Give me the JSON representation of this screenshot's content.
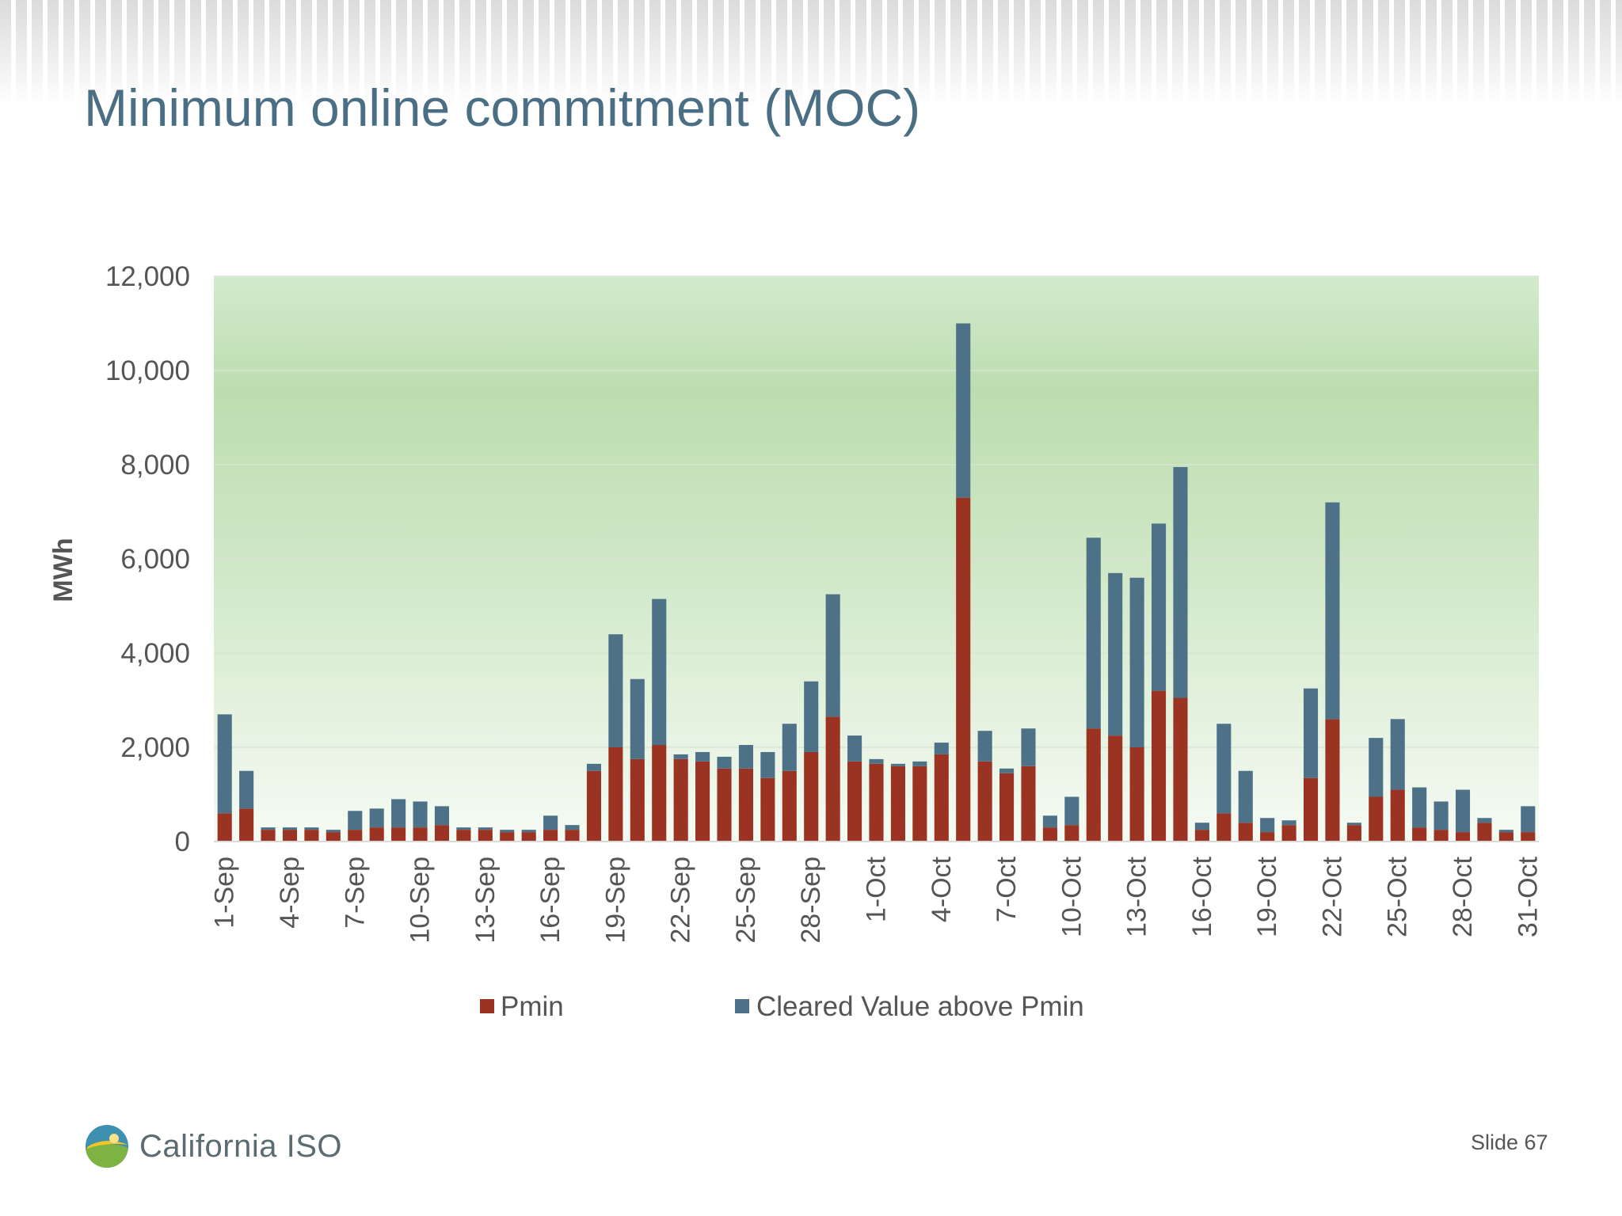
{
  "slide": {
    "title": "Minimum online commitment (MOC)",
    "slide_number": "Slide 67",
    "logo_text": "California ISO"
  },
  "chart_data": {
    "type": "bar",
    "stacked": true,
    "ylabel": "MWh",
    "xlabel": "",
    "ylim": [
      0,
      12000
    ],
    "yticks": [
      0,
      2000,
      4000,
      6000,
      8000,
      10000,
      12000
    ],
    "ytick_labels": [
      "0",
      "2,000",
      "4,000",
      "6,000",
      "8,000",
      "10,000",
      "12,000"
    ],
    "grid": true,
    "legend_position": "bottom",
    "categories": [
      "1-Sep",
      "2-Sep",
      "3-Sep",
      "4-Sep",
      "5-Sep",
      "6-Sep",
      "7-Sep",
      "8-Sep",
      "9-Sep",
      "10-Sep",
      "11-Sep",
      "12-Sep",
      "13-Sep",
      "14-Sep",
      "15-Sep",
      "16-Sep",
      "17-Sep",
      "18-Sep",
      "19-Sep",
      "20-Sep",
      "21-Sep",
      "22-Sep",
      "23-Sep",
      "24-Sep",
      "25-Sep",
      "26-Sep",
      "27-Sep",
      "28-Sep",
      "29-Sep",
      "30-Sep",
      "1-Oct",
      "2-Oct",
      "3-Oct",
      "4-Oct",
      "5-Oct",
      "6-Oct",
      "7-Oct",
      "8-Oct",
      "9-Oct",
      "10-Oct",
      "11-Oct",
      "12-Oct",
      "13-Oct",
      "14-Oct",
      "15-Oct",
      "16-Oct",
      "17-Oct",
      "18-Oct",
      "19-Oct",
      "20-Oct",
      "21-Oct",
      "22-Oct",
      "23-Oct",
      "24-Oct",
      "25-Oct",
      "26-Oct",
      "27-Oct",
      "28-Oct",
      "29-Oct",
      "30-Oct",
      "31-Oct"
    ],
    "shown_tick_labels": [
      "1-Sep",
      "4-Sep",
      "7-Sep",
      "10-Sep",
      "13-Sep",
      "16-Sep",
      "19-Sep",
      "22-Sep",
      "25-Sep",
      "28-Sep",
      "1-Oct",
      "4-Oct",
      "7-Oct",
      "10-Oct",
      "13-Oct",
      "16-Oct",
      "19-Oct",
      "22-Oct",
      "25-Oct",
      "28-Oct",
      "31-Oct"
    ],
    "series": [
      {
        "name": "Pmin",
        "color": "#9a3322",
        "values": [
          600,
          700,
          250,
          250,
          250,
          200,
          250,
          300,
          300,
          300,
          350,
          250,
          250,
          200,
          200,
          250,
          250,
          1500,
          2000,
          1750,
          2050,
          1750,
          1700,
          1550,
          1550,
          1350,
          1500,
          1900,
          2650,
          1700,
          1650,
          1600,
          1600,
          1850,
          7300,
          1700,
          1450,
          1600,
          300,
          350,
          2400,
          2250,
          2000,
          3200,
          3050,
          250,
          600,
          400,
          200,
          350,
          1350,
          2600,
          350,
          950,
          1100,
          300,
          250,
          200,
          400,
          200,
          200
        ]
      },
      {
        "name": "Cleared Value above Pmin",
        "color": "#4d7288",
        "values": [
          2100,
          800,
          50,
          50,
          50,
          50,
          400,
          400,
          600,
          550,
          400,
          50,
          50,
          50,
          50,
          300,
          100,
          150,
          2400,
          1700,
          3100,
          100,
          200,
          250,
          500,
          550,
          1000,
          1500,
          2600,
          550,
          100,
          50,
          100,
          250,
          3700,
          650,
          100,
          800,
          250,
          600,
          4050,
          3450,
          3600,
          3550,
          4900,
          150,
          1900,
          1100,
          300,
          100,
          1900,
          4600,
          50,
          1250,
          1500,
          850,
          600,
          900,
          100,
          50,
          550
        ]
      }
    ]
  }
}
